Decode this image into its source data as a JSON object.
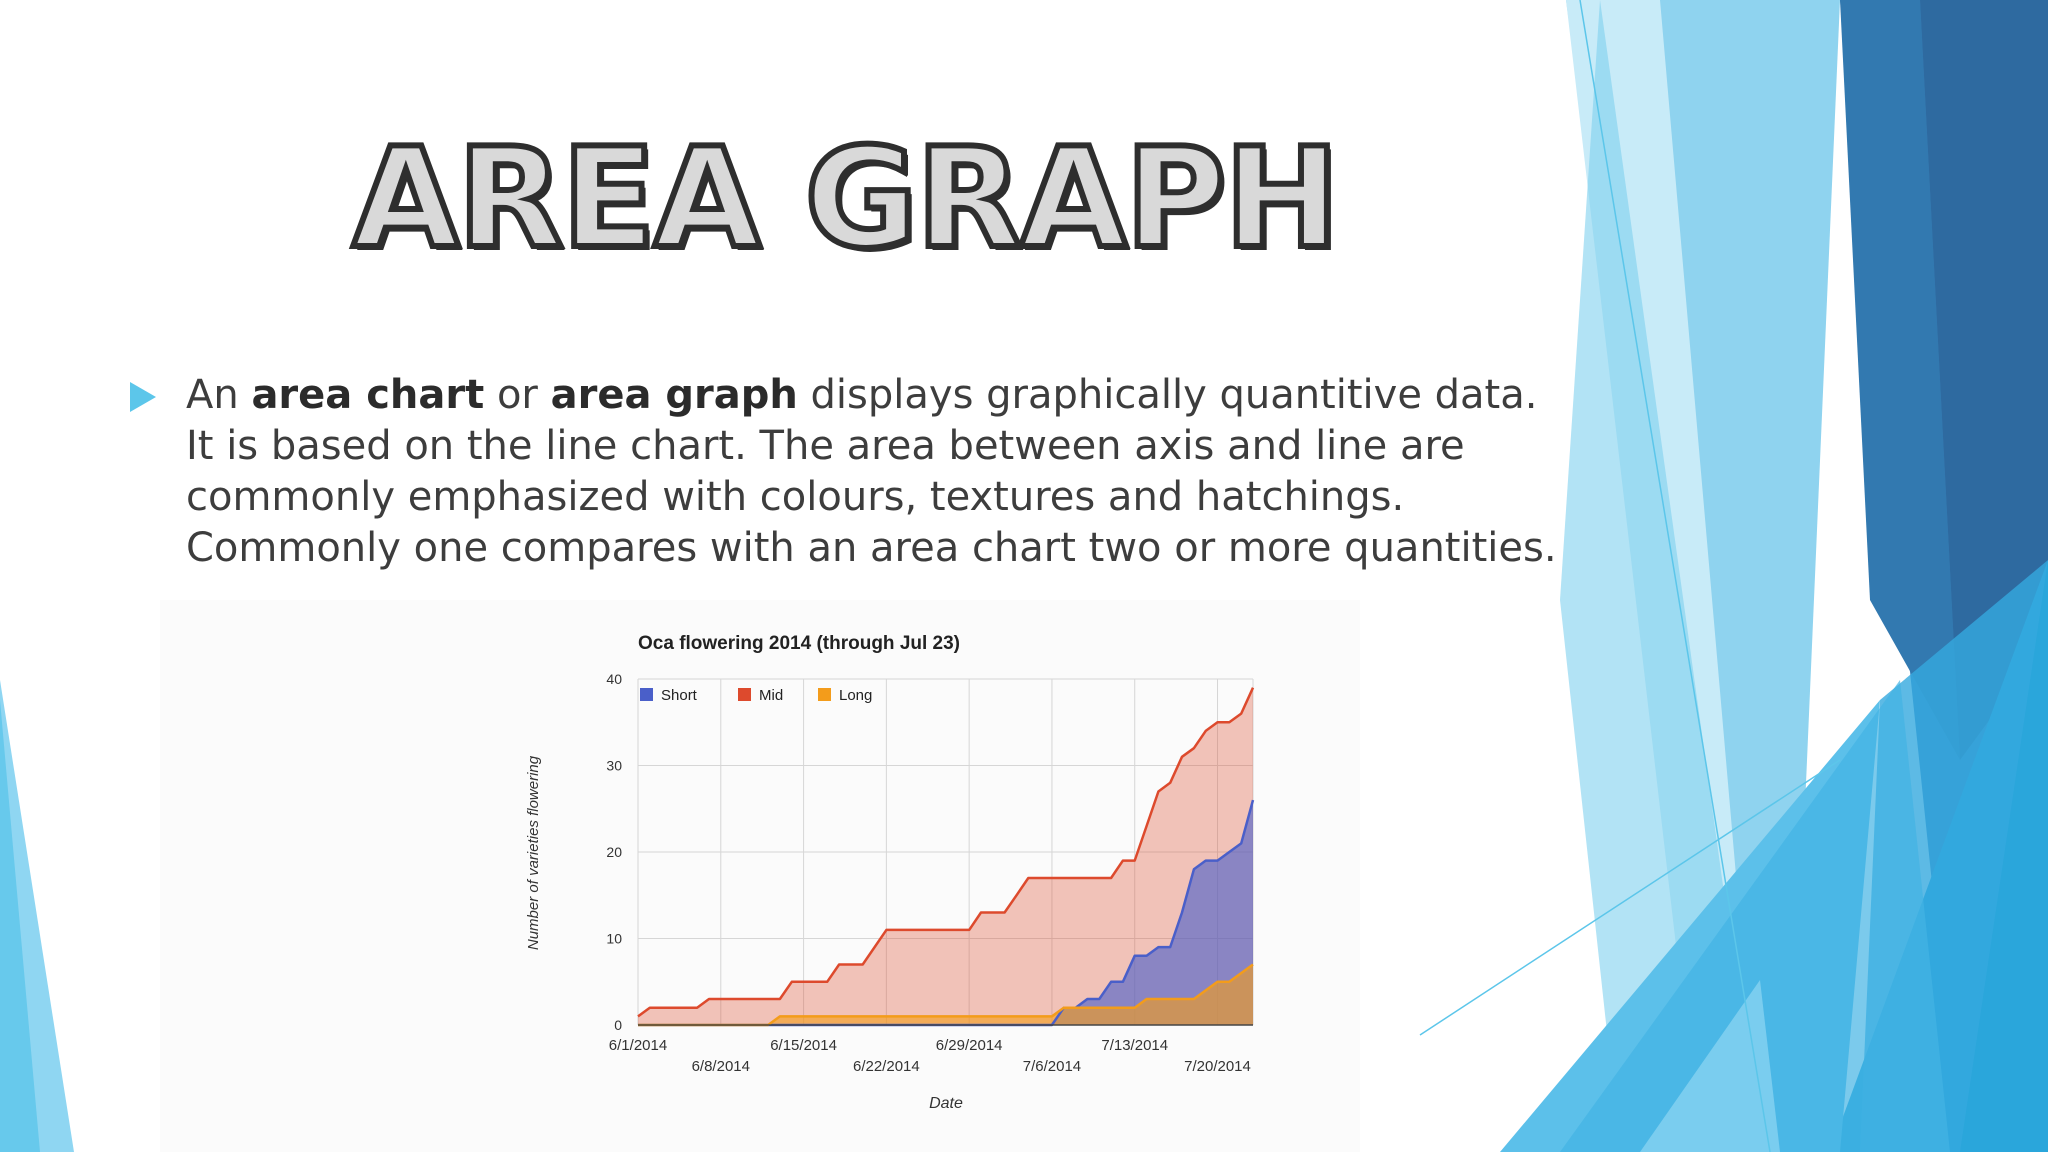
{
  "slide": {
    "title": "AREA GRAPH",
    "body": {
      "t1": "An ",
      "b1": "area chart",
      "t2": " or ",
      "b2": "area graph",
      "t3": " displays graphically quantitive data. It is based on the line chart. The area between axis and line are commonly emphasized with colours, textures and hatchings. Commonly one compares with an area chart two or more quantities."
    }
  },
  "colors": {
    "bullet": "#5cc6ea",
    "short": "#4a5fc9",
    "mid": "#dd4a2d",
    "long": "#f39c1b"
  },
  "chart_data": {
    "type": "area",
    "title": "Oca flowering 2014 (through Jul 23)",
    "xlabel": "Date",
    "ylabel": "Number of varieties flowering",
    "ylim": [
      0,
      40
    ],
    "xlim": [
      "6/1/2014",
      "7/23/2014"
    ],
    "yticks": [
      0,
      10,
      20,
      30,
      40
    ],
    "xticks": [
      "6/1/2014",
      "6/8/2014",
      "6/15/2014",
      "6/22/2014",
      "6/29/2014",
      "7/6/2014",
      "7/13/2014",
      "7/20/2014"
    ],
    "grid": true,
    "legend": "top-left",
    "stacking": "overlapping",
    "series": [
      {
        "name": "Short",
        "color": "#4a5fc9",
        "points": [
          [
            "6/1/2014",
            0
          ],
          [
            "7/6/2014",
            0
          ],
          [
            "7/7/2014",
            2
          ],
          [
            "7/8/2014",
            2
          ],
          [
            "7/9/2014",
            3
          ],
          [
            "7/10/2014",
            3
          ],
          [
            "7/11/2014",
            5
          ],
          [
            "7/12/2014",
            5
          ],
          [
            "7/13/2014",
            8
          ],
          [
            "7/14/2014",
            8
          ],
          [
            "7/15/2014",
            9
          ],
          [
            "7/16/2014",
            9
          ],
          [
            "7/17/2014",
            13
          ],
          [
            "7/18/2014",
            18
          ],
          [
            "7/19/2014",
            19
          ],
          [
            "7/20/2014",
            19
          ],
          [
            "7/21/2014",
            20
          ],
          [
            "7/22/2014",
            21
          ],
          [
            "7/23/2014",
            26
          ]
        ]
      },
      {
        "name": "Mid",
        "color": "#dd4a2d",
        "points": [
          [
            "6/1/2014",
            1
          ],
          [
            "6/2/2014",
            2
          ],
          [
            "6/6/2014",
            2
          ],
          [
            "6/7/2014",
            3
          ],
          [
            "6/13/2014",
            3
          ],
          [
            "6/14/2014",
            5
          ],
          [
            "6/17/2014",
            5
          ],
          [
            "6/18/2014",
            7
          ],
          [
            "6/20/2014",
            7
          ],
          [
            "6/22/2014",
            11
          ],
          [
            "6/29/2014",
            11
          ],
          [
            "6/30/2014",
            13
          ],
          [
            "7/2/2014",
            13
          ],
          [
            "7/3/2014",
            15
          ],
          [
            "7/4/2014",
            17
          ],
          [
            "7/11/2014",
            17
          ],
          [
            "7/12/2014",
            19
          ],
          [
            "7/13/2014",
            19
          ],
          [
            "7/14/2014",
            23
          ],
          [
            "7/15/2014",
            27
          ],
          [
            "7/16/2014",
            28
          ],
          [
            "7/17/2014",
            31
          ],
          [
            "7/18/2014",
            32
          ],
          [
            "7/19/2014",
            34
          ],
          [
            "7/20/2014",
            35
          ],
          [
            "7/21/2014",
            35
          ],
          [
            "7/22/2014",
            36
          ],
          [
            "7/23/2014",
            39
          ]
        ]
      },
      {
        "name": "Long",
        "color": "#f39c1b",
        "points": [
          [
            "6/1/2014",
            0
          ],
          [
            "6/12/2014",
            0
          ],
          [
            "6/13/2014",
            1
          ],
          [
            "6/16/2014",
            1
          ],
          [
            "6/17/2014",
            1
          ],
          [
            "7/5/2014",
            1
          ],
          [
            "7/6/2014",
            1
          ],
          [
            "7/7/2014",
            2
          ],
          [
            "7/13/2014",
            2
          ],
          [
            "7/14/2014",
            3
          ],
          [
            "7/18/2014",
            3
          ],
          [
            "7/20/2014",
            5
          ],
          [
            "7/21/2014",
            5
          ],
          [
            "7/23/2014",
            7
          ]
        ]
      }
    ]
  }
}
